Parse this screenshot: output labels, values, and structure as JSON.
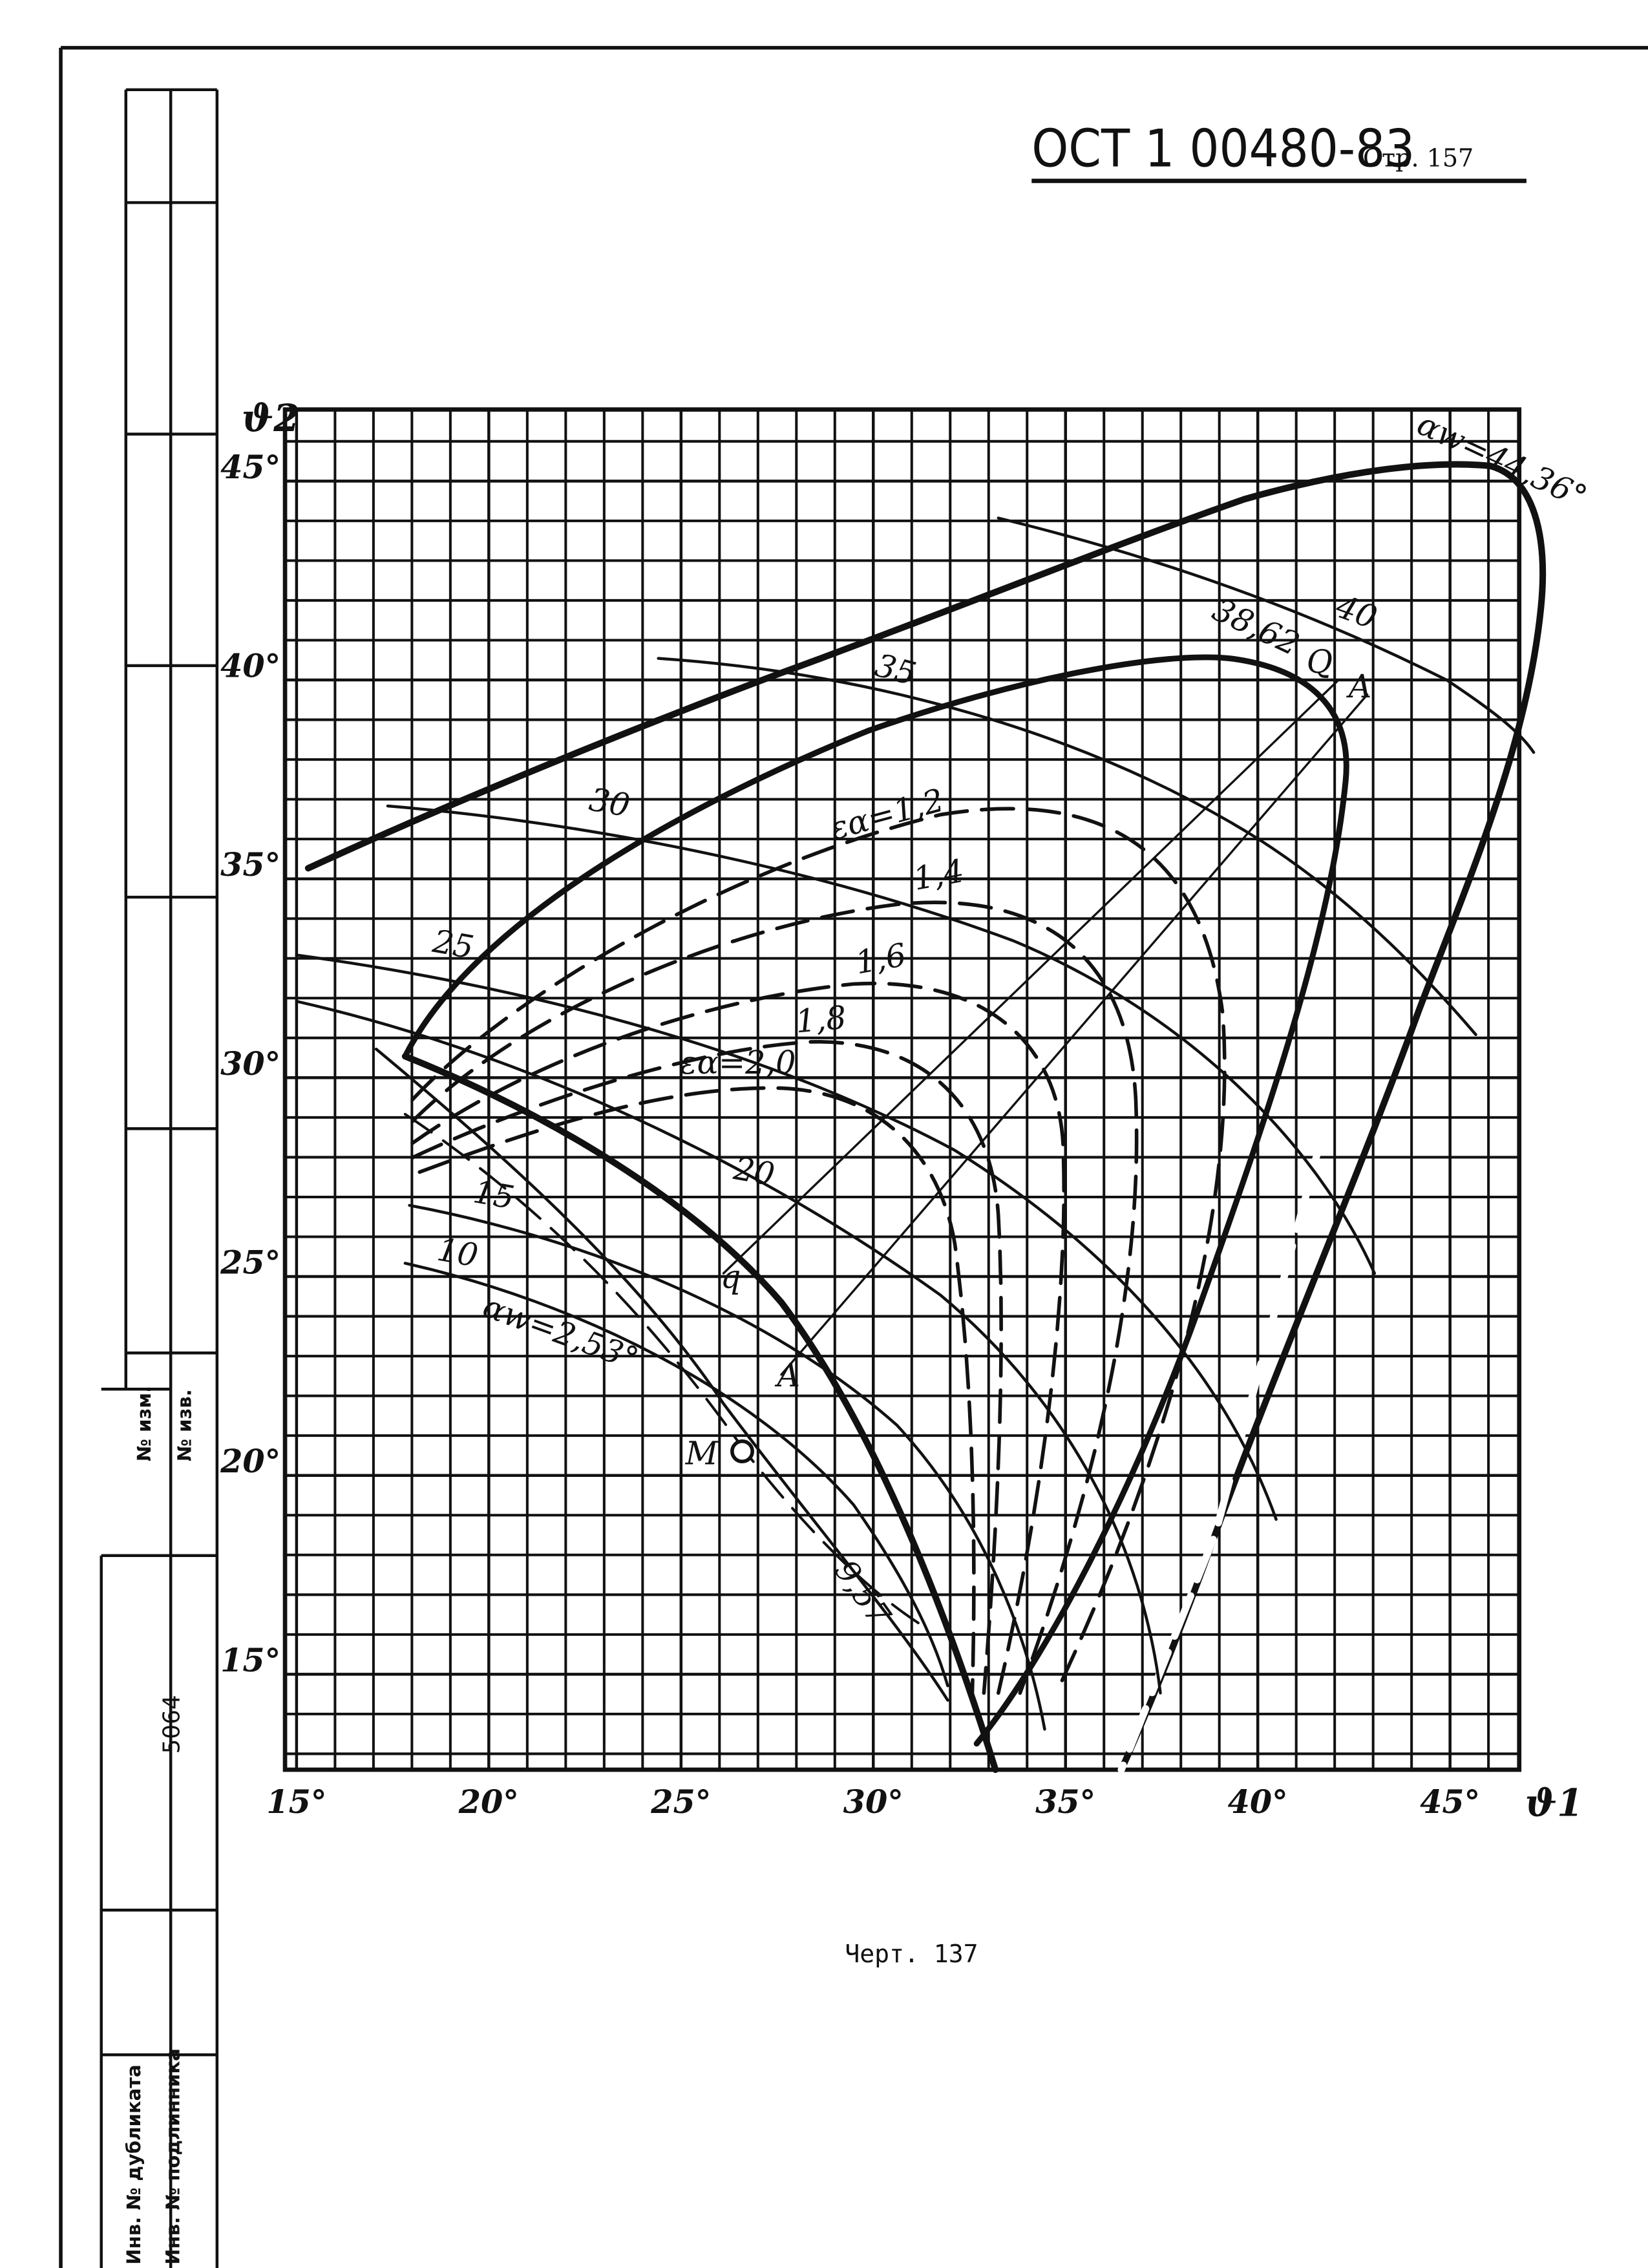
{
  "header": {
    "standard": "ОСТ 1 00480-83",
    "page": "Стр. 157"
  },
  "stamp": {
    "change_no": "№ изм.",
    "notice_no": "№ изв.",
    "number": "5064",
    "duplicate_inv": "Инв. № дубликата",
    "original_inv": "Инв. № подлинника"
  },
  "figure": {
    "x_label": "ϑ1",
    "y_label": "ϑ2",
    "xlim": [
      14.7,
      46.8
    ],
    "ylim": [
      12.6,
      46.8
    ],
    "xticks": [
      {
        "value": 15,
        "label": "15°"
      },
      {
        "value": 20,
        "label": "20°"
      },
      {
        "value": 25,
        "label": "25°"
      },
      {
        "value": 30,
        "label": "30°"
      },
      {
        "value": 35,
        "label": "35°"
      },
      {
        "value": 40,
        "label": "40°"
      },
      {
        "value": 45,
        "label": "45°"
      }
    ],
    "yticks": [
      {
        "value": 15,
        "label": "15°"
      },
      {
        "value": 20,
        "label": "20°"
      },
      {
        "value": 25,
        "label": "25°"
      },
      {
        "value": 30,
        "label": "30°"
      },
      {
        "value": 35,
        "label": "35°"
      },
      {
        "value": 40,
        "label": "40°"
      },
      {
        "value": 45,
        "label": "45°"
      }
    ],
    "grid": true,
    "curve_labels": [
      "αw=44,36°",
      "38,62",
      "40",
      "35",
      "30",
      "25",
      "20",
      "15",
      "10",
      "αw=2,53°",
      "εα=1,2",
      "1,4",
      "1,6",
      "1,8",
      "εα=2,0",
      "Q",
      "A",
      "q",
      "A",
      "M",
      "9,57"
    ]
  },
  "caption": "Черт. 137"
}
